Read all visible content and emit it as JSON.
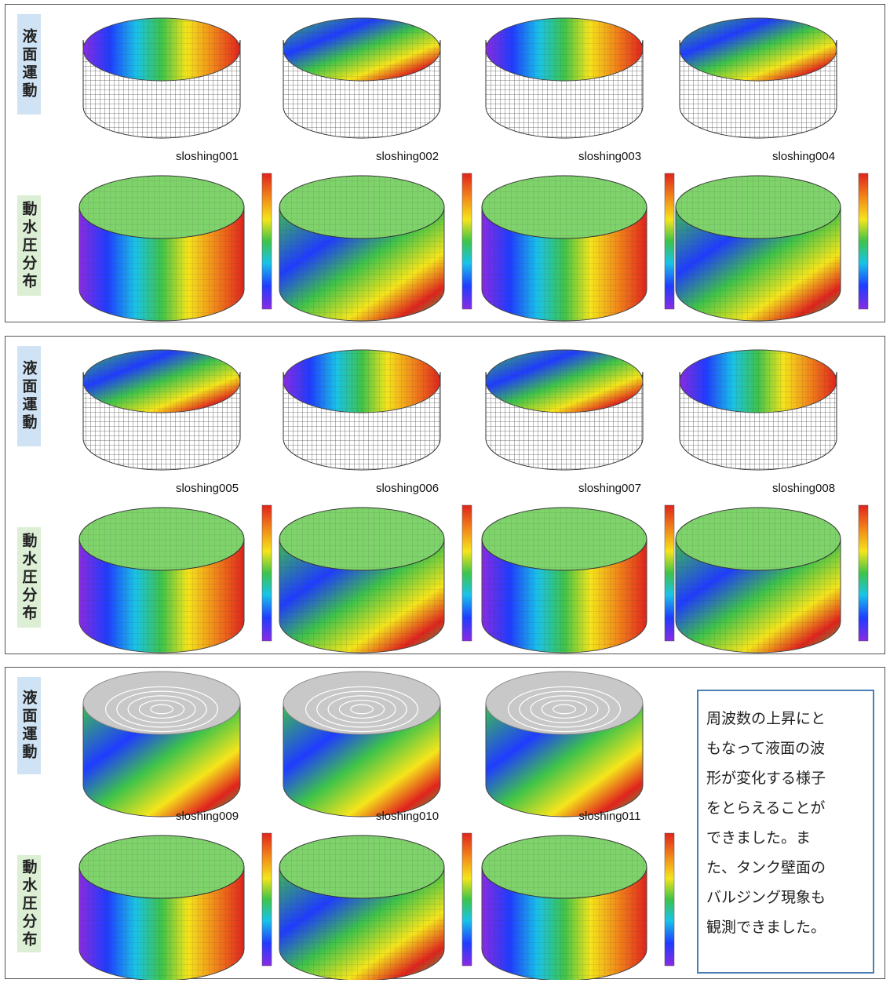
{
  "panels": [
    {
      "row_labels": [
        "液面運動",
        "動水圧分布"
      ],
      "captions": [
        "sloshing001",
        "sloshing002",
        "sloshing003",
        "sloshing004"
      ]
    },
    {
      "row_labels": [
        "液面運動",
        "動水圧分布"
      ],
      "captions": [
        "sloshing005",
        "sloshing006",
        "sloshing007",
        "sloshing008"
      ]
    },
    {
      "row_labels": [
        "液面運動",
        "動水圧分布"
      ],
      "captions": [
        "sloshing009",
        "sloshing010",
        "sloshing011"
      ],
      "note": [
        "周波数の上昇にと",
        "もなって液面の波",
        "形が変化する様子",
        "をとらえることが",
        "できました。ま",
        "た、タンク壁面の",
        "バルジング現象も",
        "観測できました。"
      ]
    }
  ]
}
